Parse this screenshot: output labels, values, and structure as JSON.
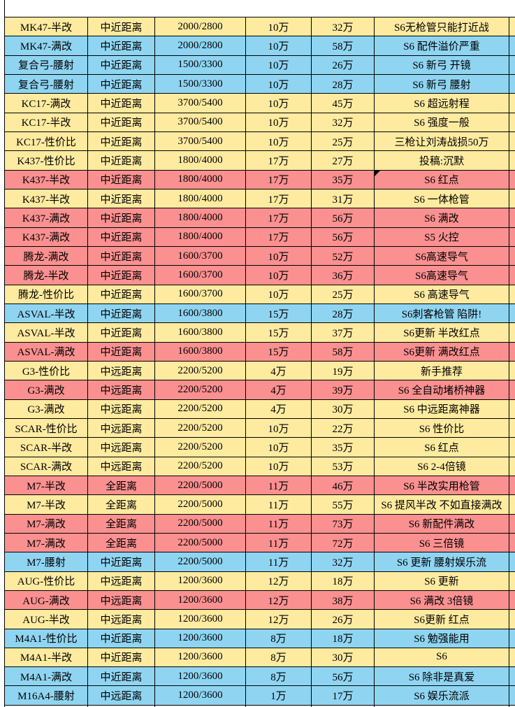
{
  "table": {
    "colors": {
      "yellow": "#ffeba0",
      "pink": "#fb9090",
      "blue": "#8fd5f2"
    },
    "rows": [
      {
        "name": "MK47-半改",
        "range": "中近距离",
        "stats": "2000/2800",
        "price1": "10万",
        "price2": "32万",
        "comment": "S6无枪管只能打近战",
        "color": "yellow"
      },
      {
        "name": "MK47-满改",
        "range": "中近距离",
        "stats": "2000/2800",
        "price1": "10万",
        "price2": "58万",
        "comment": "S6 配件溢价严重",
        "color": "blue"
      },
      {
        "name": "复合弓-腰射",
        "range": "中近距离",
        "stats": "1500/3300",
        "price1": "10万",
        "price2": "26万",
        "comment": "S6 新弓 开镜",
        "color": "blue"
      },
      {
        "name": "复合弓-腰射",
        "range": "中近距离",
        "stats": "1500/3300",
        "price1": "10万",
        "price2": "28万",
        "comment": "S6 新弓 腰射",
        "color": "blue"
      },
      {
        "name": "KC17-满改",
        "range": "中近距离",
        "stats": "3700/5400",
        "price1": "10万",
        "price2": "45万",
        "comment": "S6 超远射程",
        "color": "yellow"
      },
      {
        "name": "KC17-半改",
        "range": "中近距离",
        "stats": "3700/5400",
        "price1": "10万",
        "price2": "32万",
        "comment": "S6 强度一般",
        "color": "yellow"
      },
      {
        "name": "KC17-性价比",
        "range": "中近距离",
        "stats": "3700/5400",
        "price1": "10万",
        "price2": "25万",
        "comment": "三枪让刘涛战损50万",
        "color": "yellow"
      },
      {
        "name": "K437-性价比",
        "range": "中近距离",
        "stats": "1800/4000",
        "price1": "17万",
        "price2": "27万",
        "comment": "投稿:沉默",
        "color": "yellow"
      },
      {
        "name": "K437-半改",
        "range": "中近距离",
        "stats": "1800/4000",
        "price1": "17万",
        "price2": "35万",
        "comment": "S6 红点",
        "color": "pink",
        "marker": true
      },
      {
        "name": "K437-半改",
        "range": "中近距离",
        "stats": "1800/4000",
        "price1": "17万",
        "price2": "31万",
        "comment": "S6 一体枪管",
        "color": "yellow"
      },
      {
        "name": "K437-满改",
        "range": "中近距离",
        "stats": "1800/4000",
        "price1": "17万",
        "price2": "56万",
        "comment": "S6 满改",
        "color": "pink"
      },
      {
        "name": "K437-满改",
        "range": "中近距离",
        "stats": "1800/4000",
        "price1": "17万",
        "price2": "56万",
        "comment": "S5 火控",
        "color": "pink"
      },
      {
        "name": "腾龙-满改",
        "range": "中近距离",
        "stats": "1600/3700",
        "price1": "10万",
        "price2": "52万",
        "comment": "S6高速导气",
        "color": "pink"
      },
      {
        "name": "腾龙-半改",
        "range": "中近距离",
        "stats": "1600/3700",
        "price1": "10万",
        "price2": "36万",
        "comment": "S6高速导气",
        "color": "pink"
      },
      {
        "name": "腾龙-性价比",
        "range": "中近距离",
        "stats": "1600/3700",
        "price1": "10万",
        "price2": "25万",
        "comment": "S6 高速导气",
        "color": "yellow"
      },
      {
        "name": "ASVAL-半改",
        "range": "中近距离",
        "stats": "1600/3800",
        "price1": "15万",
        "price2": "28万",
        "comment": "S6刺客枪管 陷阱!",
        "color": "blue"
      },
      {
        "name": "ASVAL-半改",
        "range": "中近距离",
        "stats": "1600/3800",
        "price1": "15万",
        "price2": "37万",
        "comment": "S6更新 半改红点",
        "color": "yellow"
      },
      {
        "name": "ASVAL-满改",
        "range": "中近距离",
        "stats": "1600/3800",
        "price1": "15万",
        "price2": "58万",
        "comment": "S6更新 满改红点",
        "color": "pink"
      },
      {
        "name": "G3-性价比",
        "range": "中远距离",
        "stats": "2200/5200",
        "price1": "4万",
        "price2": "19万",
        "comment": "新手推荐",
        "color": "yellow"
      },
      {
        "name": "G3-满改",
        "range": "中远距离",
        "stats": "2200/5200",
        "price1": "4万",
        "price2": "39万",
        "comment": "S6 全自动堵桥神器",
        "color": "pink"
      },
      {
        "name": "G3-满改",
        "range": "中远距离",
        "stats": "2200/5200",
        "price1": "4万",
        "price2": "30万",
        "comment": "S6 中远距离神器",
        "color": "yellow"
      },
      {
        "name": "SCAR-性价比",
        "range": "中远距离",
        "stats": "2200/5200",
        "price1": "10万",
        "price2": "22万",
        "comment": "S6 性价比",
        "color": "yellow"
      },
      {
        "name": "SCAR-半改",
        "range": "中远距离",
        "stats": "2200/5200",
        "price1": "10万",
        "price2": "35万",
        "comment": "S6 红点",
        "color": "yellow"
      },
      {
        "name": "SCAR-满改",
        "range": "中远距离",
        "stats": "2200/5200",
        "price1": "10万",
        "price2": "53万",
        "comment": "S6 2-4倍镜",
        "color": "yellow"
      },
      {
        "name": "M7-半改",
        "range": "全距离",
        "stats": "2200/5000",
        "price1": "11万",
        "price2": "46万",
        "comment": "S6 半改实用枪管",
        "color": "pink"
      },
      {
        "name": "M7-半改",
        "range": "全距离",
        "stats": "2200/5000",
        "price1": "11万",
        "price2": "55万",
        "comment": "S6 提风半改 不如直接满改",
        "color": "yellow"
      },
      {
        "name": "M7-满改",
        "range": "全距离",
        "stats": "2200/5000",
        "price1": "11万",
        "price2": "73万",
        "comment": "S6 新配件满改",
        "color": "pink"
      },
      {
        "name": "M7-满改",
        "range": "全距离",
        "stats": "2200/5000",
        "price1": "11万",
        "price2": "72万",
        "comment": "S6  三倍镜",
        "color": "pink"
      },
      {
        "name": "M7-腰射",
        "range": "中近距离",
        "stats": "2200/5000",
        "price1": "11万",
        "price2": "32万",
        "comment": "S6 更新 腰射娱乐流",
        "color": "blue"
      },
      {
        "name": "AUG-性价比",
        "range": "中远距离",
        "stats": "1200/3600",
        "price1": "12万",
        "price2": "18万",
        "comment": "S6 更新",
        "color": "yellow"
      },
      {
        "name": "AUG-满改",
        "range": "中远距离",
        "stats": "1200/3600",
        "price1": "12万",
        "price2": "38万",
        "comment": "S6 满改 3倍镜",
        "color": "pink"
      },
      {
        "name": "AUG-半改",
        "range": "中远距离",
        "stats": "1200/3600",
        "price1": "12万",
        "price2": "26万",
        "comment": "S6更新 红点",
        "color": "yellow"
      },
      {
        "name": "M4A1-性价比",
        "range": "中近距离",
        "stats": "1200/3600",
        "price1": "8万",
        "price2": "18万",
        "comment": "S6 勉强能用",
        "color": "blue"
      },
      {
        "name": "M4A1-半改",
        "range": "中近距离",
        "stats": "1200/3600",
        "price1": "8万",
        "price2": "30万",
        "comment": "S6",
        "color": "yellow"
      },
      {
        "name": "M4A1-满改",
        "range": "中近距离",
        "stats": "1200/3600",
        "price1": "8万",
        "price2": "56万",
        "comment": "S6 除非是真爱",
        "color": "blue"
      },
      {
        "name": "M16A4-腰射",
        "range": "中远距离",
        "stats": "1200/3600",
        "price1": "1万",
        "price2": "17万",
        "comment": "S6 娱乐流派",
        "color": "blue"
      }
    ]
  }
}
